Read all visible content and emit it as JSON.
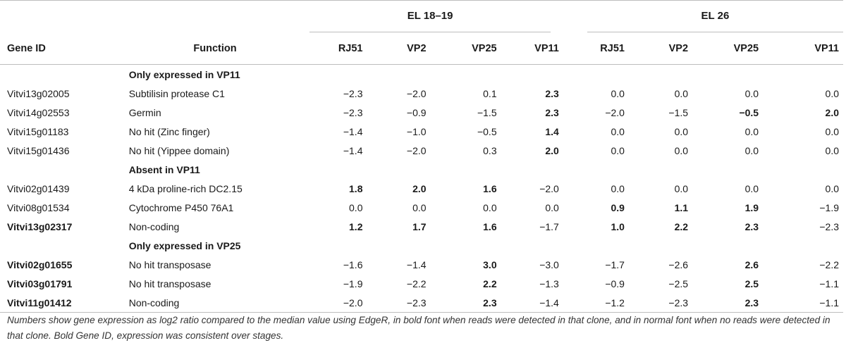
{
  "groups": [
    "EL 18–19",
    "EL 26"
  ],
  "headers": {
    "gene_id": "Gene ID",
    "function": "Function",
    "el1819": [
      "RJ51",
      "VP2",
      "VP25",
      "VP11"
    ],
    "el26": [
      "RJ51",
      "VP2",
      "VP25",
      "VP11"
    ]
  },
  "sections": [
    {
      "title": "Only expressed in VP11",
      "rows": [
        {
          "gene": "Vitvi13g02005",
          "gene_bold": false,
          "function": "Subtilisin protease C1",
          "values": [
            "−2.3",
            "−2.0",
            "0.1",
            "2.3",
            "0.0",
            "0.0",
            "0.0",
            "0.0"
          ],
          "bold": [
            false,
            false,
            false,
            true,
            false,
            false,
            false,
            false
          ]
        },
        {
          "gene": "Vitvi14g02553",
          "gene_bold": false,
          "function": "Germin",
          "values": [
            "−2.3",
            "−0.9",
            "−1.5",
            "2.3",
            "−2.0",
            "−1.5",
            "−0.5",
            "2.0"
          ],
          "bold": [
            false,
            false,
            false,
            true,
            false,
            false,
            true,
            true
          ]
        },
        {
          "gene": "Vitvi15g01183",
          "gene_bold": false,
          "function": "No hit (Zinc finger)",
          "values": [
            "−1.4",
            "−1.0",
            "−0.5",
            "1.4",
            "0.0",
            "0.0",
            "0.0",
            "0.0"
          ],
          "bold": [
            false,
            false,
            false,
            true,
            false,
            false,
            false,
            false
          ]
        },
        {
          "gene": "Vitvi15g01436",
          "gene_bold": false,
          "function": "No hit (Yippee domain)",
          "values": [
            "−1.4",
            "−2.0",
            "0.3",
            "2.0",
            "0.0",
            "0.0",
            "0.0",
            "0.0"
          ],
          "bold": [
            false,
            false,
            false,
            true,
            false,
            false,
            false,
            false
          ]
        }
      ]
    },
    {
      "title": "Absent in VP11",
      "rows": [
        {
          "gene": "Vitvi02g01439",
          "gene_bold": false,
          "function": "4 kDa proline-rich DC2.15",
          "values": [
            "1.8",
            "2.0",
            "1.6",
            "−2.0",
            "0.0",
            "0.0",
            "0.0",
            "0.0"
          ],
          "bold": [
            true,
            true,
            true,
            false,
            false,
            false,
            false,
            false
          ]
        },
        {
          "gene": "Vitvi08g01534",
          "gene_bold": false,
          "function": "Cytochrome P450 76A1",
          "values": [
            "0.0",
            "0.0",
            "0.0",
            "0.0",
            "0.9",
            "1.1",
            "1.9",
            "−1.9"
          ],
          "bold": [
            false,
            false,
            false,
            false,
            true,
            true,
            true,
            false
          ]
        },
        {
          "gene": "Vitvi13g02317",
          "gene_bold": true,
          "function": "Non-coding",
          "values": [
            "1.2",
            "1.7",
            "1.6",
            "−1.7",
            "1.0",
            "2.2",
            "2.3",
            "−2.3"
          ],
          "bold": [
            true,
            true,
            true,
            false,
            true,
            true,
            true,
            false
          ]
        }
      ]
    },
    {
      "title": "Only expressed in VP25",
      "rows": [
        {
          "gene": "Vitvi02g01655",
          "gene_bold": true,
          "function": "No hit transposase",
          "values": [
            "−1.6",
            "−1.4",
            "3.0",
            "−3.0",
            "−1.7",
            "−2.6",
            "2.6",
            "−2.2"
          ],
          "bold": [
            false,
            false,
            true,
            false,
            false,
            false,
            true,
            false
          ]
        },
        {
          "gene": "Vitvi03g01791",
          "gene_bold": true,
          "function": "No hit transposase",
          "values": [
            "−1.9",
            "−2.2",
            "2.2",
            "−1.3",
            "−0.9",
            "−2.5",
            "2.5",
            "−1.1"
          ],
          "bold": [
            false,
            false,
            true,
            false,
            false,
            false,
            true,
            false
          ]
        },
        {
          "gene": "Vitvi11g01412",
          "gene_bold": true,
          "function": "Non-coding",
          "values": [
            "−2.0",
            "−2.3",
            "2.3",
            "−1.4",
            "−1.2",
            "−2.3",
            "2.3",
            "−1.1"
          ],
          "bold": [
            false,
            false,
            true,
            false,
            false,
            false,
            true,
            false
          ]
        }
      ]
    }
  ],
  "footnote": "Numbers show gene expression as log2 ratio compared to the median value using EdgeR, in bold font when reads were detected in that clone, and in normal font when no reads were detected in that clone. Bold Gene ID, expression was consistent over stages."
}
